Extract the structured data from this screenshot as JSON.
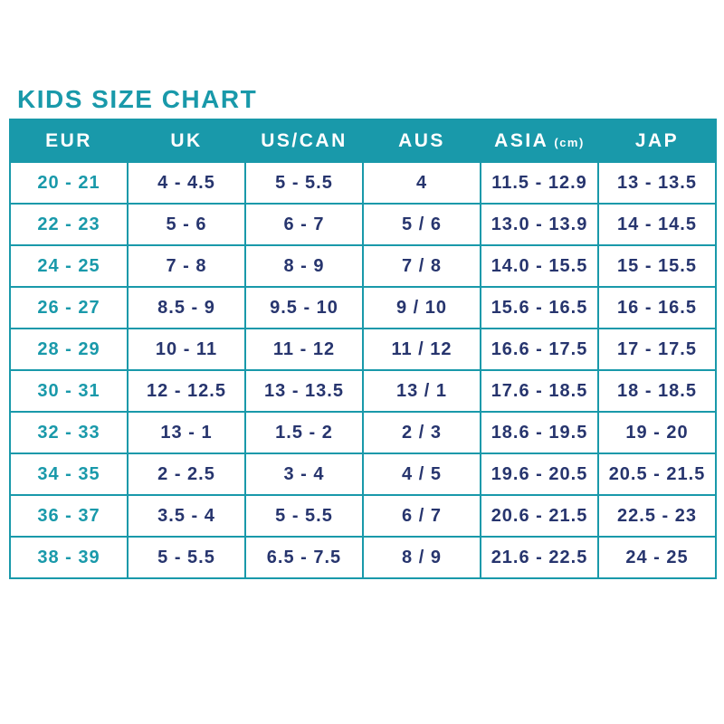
{
  "title": "KIDS SIZE CHART",
  "colors": {
    "teal": "#1999AA",
    "navy": "#27356E",
    "background": "#FFFFFF",
    "header_text": "#FFFFFF"
  },
  "chart_data": {
    "type": "table",
    "title": "KIDS SIZE CHART",
    "columns": [
      {
        "label": "EUR",
        "unit": ""
      },
      {
        "label": "UK",
        "unit": ""
      },
      {
        "label": "US/CAN",
        "unit": ""
      },
      {
        "label": "AUS",
        "unit": ""
      },
      {
        "label": "ASIA",
        "unit": "(cm)"
      },
      {
        "label": "JAP",
        "unit": ""
      }
    ],
    "rows": [
      [
        "20 - 21",
        "4 - 4.5",
        "5 - 5.5",
        "4",
        "11.5 - 12.9",
        "13 - 13.5"
      ],
      [
        "22 - 23",
        "5 - 6",
        "6 - 7",
        "5 / 6",
        "13.0 - 13.9",
        "14 - 14.5"
      ],
      [
        "24 - 25",
        "7 - 8",
        "8 - 9",
        "7 / 8",
        "14.0 - 15.5",
        "15 - 15.5"
      ],
      [
        "26 - 27",
        "8.5 - 9",
        "9.5 - 10",
        "9 / 10",
        "15.6 - 16.5",
        "16 - 16.5"
      ],
      [
        "28 - 29",
        "10 - 11",
        "11 - 12",
        "11 / 12",
        "16.6 - 17.5",
        "17 - 17.5"
      ],
      [
        "30 - 31",
        "12 - 12.5",
        "13 - 13.5",
        "13 / 1",
        "17.6 - 18.5",
        "18 - 18.5"
      ],
      [
        "32 - 33",
        "13 - 1",
        "1.5 - 2",
        "2 / 3",
        "18.6 - 19.5",
        "19 - 20"
      ],
      [
        "34 - 35",
        "2 - 2.5",
        "3 - 4",
        "4 / 5",
        "19.6 - 20.5",
        "20.5 - 21.5"
      ],
      [
        "36 - 37",
        "3.5 - 4",
        "5 - 5.5",
        "6 / 7",
        "20.6 - 21.5",
        "22.5 - 23"
      ],
      [
        "38 - 39",
        "5 - 5.5",
        "6.5 - 7.5",
        "8 / 9",
        "21.6 - 22.5",
        "24 - 25"
      ]
    ]
  }
}
